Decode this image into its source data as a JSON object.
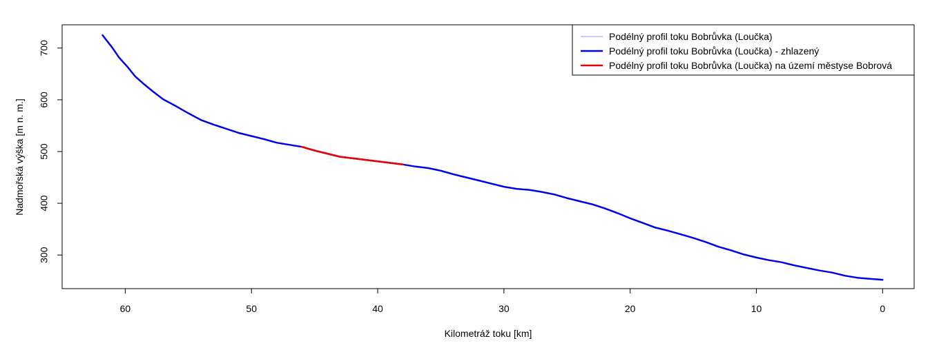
{
  "chart_data": {
    "type": "line",
    "xlabel": "Kilometráž toku [km]",
    "ylabel": "Nadmořská výška [m n. m.]",
    "xlim": [
      65,
      -2.5
    ],
    "ylim": [
      235,
      745
    ],
    "x_ticks": [
      60,
      50,
      40,
      30,
      20,
      10,
      0
    ],
    "y_ticks": [
      300,
      400,
      500,
      600,
      700
    ],
    "legend_position": "top-right",
    "grid": false,
    "series": [
      {
        "name": "Podélný profil toku Bobrůvka (Loučka)",
        "color": "#9999ff",
        "x": [
          61.8,
          61.0,
          60.5,
          59.8,
          59.2,
          58.5,
          57.8,
          57.0,
          56.0,
          55.0,
          54.0,
          53.0,
          52.0,
          51.0,
          50.0,
          49.0,
          48.0,
          47.0,
          46.0,
          45.0,
          44.0,
          43.0,
          42.0,
          41.0,
          40.0,
          39.0,
          38.0,
          37.0,
          36.0,
          35.0,
          34.0,
          33.0,
          32.0,
          31.0,
          30.0,
          29.0,
          28.0,
          27.0,
          26.0,
          25.0,
          24.0,
          23.0,
          22.0,
          21.0,
          20.0,
          19.0,
          18.0,
          17.0,
          16.0,
          15.0,
          14.0,
          13.0,
          12.0,
          11.0,
          10.0,
          9.0,
          8.0,
          7.0,
          6.0,
          5.0,
          4.0,
          3.0,
          2.0,
          1.0,
          0.0
        ],
        "y": [
          725,
          700,
          682,
          663,
          645,
          630,
          616,
          601,
          588,
          574,
          561,
          552,
          544,
          536,
          530,
          524,
          517,
          513,
          509,
          502,
          496,
          490,
          487,
          484,
          481,
          478,
          475,
          471,
          468,
          463,
          456,
          450,
          444,
          438,
          432,
          428,
          426,
          422,
          417,
          410,
          404,
          398,
          390,
          381,
          371,
          362,
          353,
          347,
          340,
          333,
          325,
          316,
          309,
          301,
          295,
          290,
          286,
          280,
          275,
          270,
          266,
          260,
          256,
          254,
          252
        ]
      },
      {
        "name": "Podélný profil toku Bobrůvka (Loučka) - zhlazený",
        "color": "#0000ee",
        "x": [
          61.8,
          61.0,
          60.5,
          59.8,
          59.2,
          58.5,
          57.8,
          57.0,
          56.0,
          55.0,
          54.0,
          53.0,
          52.0,
          51.0,
          50.0,
          49.0,
          48.0,
          47.0,
          46.0,
          45.0,
          44.0,
          43.0,
          42.0,
          41.0,
          40.0,
          39.0,
          38.0,
          37.0,
          36.0,
          35.0,
          34.0,
          33.0,
          32.0,
          31.0,
          30.0,
          29.0,
          28.0,
          27.0,
          26.0,
          25.0,
          24.0,
          23.0,
          22.0,
          21.0,
          20.0,
          19.0,
          18.0,
          17.0,
          16.0,
          15.0,
          14.0,
          13.0,
          12.0,
          11.0,
          10.0,
          9.0,
          8.0,
          7.0,
          6.0,
          5.0,
          4.0,
          3.0,
          2.0,
          1.0,
          0.0
        ],
        "y": [
          725,
          700,
          682,
          663,
          645,
          630,
          616,
          601,
          588,
          574,
          561,
          552,
          544,
          536,
          530,
          524,
          517,
          513,
          509,
          502,
          496,
          490,
          487,
          484,
          481,
          478,
          475,
          471,
          468,
          463,
          456,
          450,
          444,
          438,
          432,
          428,
          426,
          422,
          417,
          410,
          404,
          398,
          390,
          381,
          371,
          362,
          353,
          347,
          340,
          333,
          325,
          316,
          309,
          301,
          295,
          290,
          286,
          280,
          275,
          270,
          266,
          260,
          256,
          254,
          252
        ]
      },
      {
        "name": "Podélný profil toku Bobrůvka (Loučka) na území městyse Bobrová",
        "color": "#ee0000",
        "x": [
          46.0,
          45.0,
          44.0,
          43.0,
          42.0,
          41.0,
          40.0,
          39.0,
          38.0
        ],
        "y": [
          509,
          502,
          496,
          490,
          487,
          484,
          481,
          478,
          475
        ]
      }
    ]
  }
}
